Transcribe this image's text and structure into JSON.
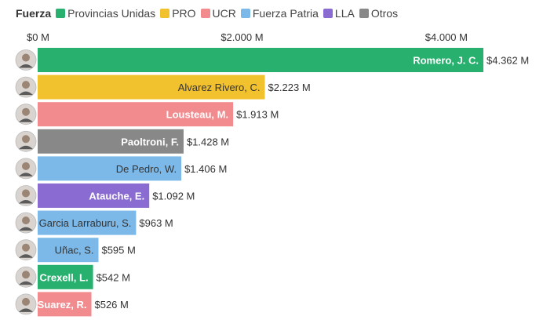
{
  "legend": {
    "title": "Fuerza",
    "items": [
      {
        "name": "Provincias Unidas",
        "color": "#27b06e"
      },
      {
        "name": "PRO",
        "color": "#f2c12e"
      },
      {
        "name": "UCR",
        "color": "#f28b8e"
      },
      {
        "name": "Fuerza Patria",
        "color": "#7cb9e8"
      },
      {
        "name": "LLA",
        "color": "#8a6bd1"
      },
      {
        "name": "Otros",
        "color": "#888888"
      }
    ]
  },
  "chart_data": {
    "type": "bar",
    "orientation": "horizontal",
    "xlim": [
      0,
      4362
    ],
    "ticks": [
      {
        "value": 0,
        "label": "$0 M"
      },
      {
        "value": 2000,
        "label": "$2.000 M"
      },
      {
        "value": 4000,
        "label": "$4.000 M"
      }
    ],
    "bars": [
      {
        "name": "Romero, J. C.",
        "value": 4362,
        "value_label": "$4.362 M",
        "party": "Provincias Unidas",
        "color": "#27b06e",
        "label_color": "#ffffff"
      },
      {
        "name": "Alvarez Rivero, C.",
        "value": 2223,
        "value_label": "$2.223 M",
        "party": "PRO",
        "color": "#f2c12e",
        "label_color": "#333333"
      },
      {
        "name": "Lousteau, M.",
        "value": 1913,
        "value_label": "$1.913 M",
        "party": "UCR",
        "color": "#f28b8e",
        "label_color": "#ffffff"
      },
      {
        "name": "Paoltroni, F.",
        "value": 1428,
        "value_label": "$1.428 M",
        "party": "Otros",
        "color": "#888888",
        "label_color": "#ffffff"
      },
      {
        "name": "De Pedro, W.",
        "value": 1406,
        "value_label": "$1.406 M",
        "party": "Fuerza Patria",
        "color": "#7cb9e8",
        "label_color": "#333333"
      },
      {
        "name": "Atauche, E.",
        "value": 1092,
        "value_label": "$1.092 M",
        "party": "LLA",
        "color": "#8a6bd1",
        "label_color": "#ffffff"
      },
      {
        "name": "Garcia Larraburu, S.",
        "value": 963,
        "value_label": "$963 M",
        "party": "Fuerza Patria",
        "color": "#7cb9e8",
        "label_color": "#333333"
      },
      {
        "name": "Uñac, S.",
        "value": 595,
        "value_label": "$595 M",
        "party": "Fuerza Patria",
        "color": "#7cb9e8",
        "label_color": "#333333"
      },
      {
        "name": "Crexell, L.",
        "value": 542,
        "value_label": "$542 M",
        "party": "Provincias Unidas",
        "color": "#27b06e",
        "label_color": "#ffffff"
      },
      {
        "name": "Suarez, R.",
        "value": 526,
        "value_label": "$526 M",
        "party": "UCR",
        "color": "#f28b8e",
        "label_color": "#ffffff"
      }
    ]
  }
}
